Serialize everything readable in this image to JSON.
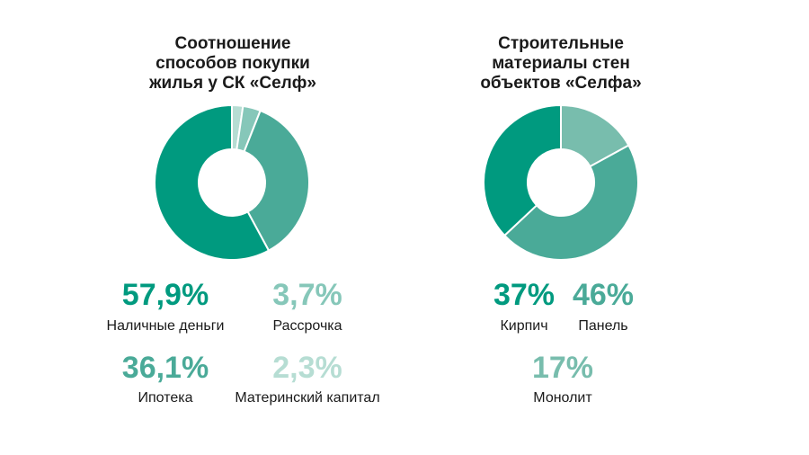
{
  "charts": {
    "left": {
      "title_lines": [
        "Соотношение",
        "способов покупки",
        "жилья у СК «Селф»"
      ]
    },
    "right": {
      "title_lines": [
        "Строительные",
        "материалы стен",
        "объектов «Селфа»"
      ]
    }
  },
  "chart_data": [
    {
      "type": "pie",
      "style": "donut",
      "title": "Соотношение способов покупки жилья у СК «Селф»",
      "slices": [
        {
          "label": "Наличные деньги",
          "value": 57.9,
          "display": "57,9%",
          "color": "#009a7f"
        },
        {
          "label": "Ипотека",
          "value": 36.1,
          "display": "36,1%",
          "color": "#4aaa98"
        },
        {
          "label": "Рассрочка",
          "value": 3.7,
          "display": "3,7%",
          "color": "#86c7b9"
        },
        {
          "label": "Материнский капитал",
          "value": 2.3,
          "display": "2,3%",
          "color": "#b6ddd3"
        }
      ]
    },
    {
      "type": "pie",
      "style": "donut",
      "title": "Строительные материалы стен объектов «Селфа»",
      "slices": [
        {
          "label": "Кирпич",
          "value": 37,
          "display": "37%",
          "color": "#009a7f"
        },
        {
          "label": "Панель",
          "value": 46,
          "display": "46%",
          "color": "#4aaa98"
        },
        {
          "label": "Монолит",
          "value": 17,
          "display": "17%",
          "color": "#78bdad"
        }
      ]
    }
  ]
}
